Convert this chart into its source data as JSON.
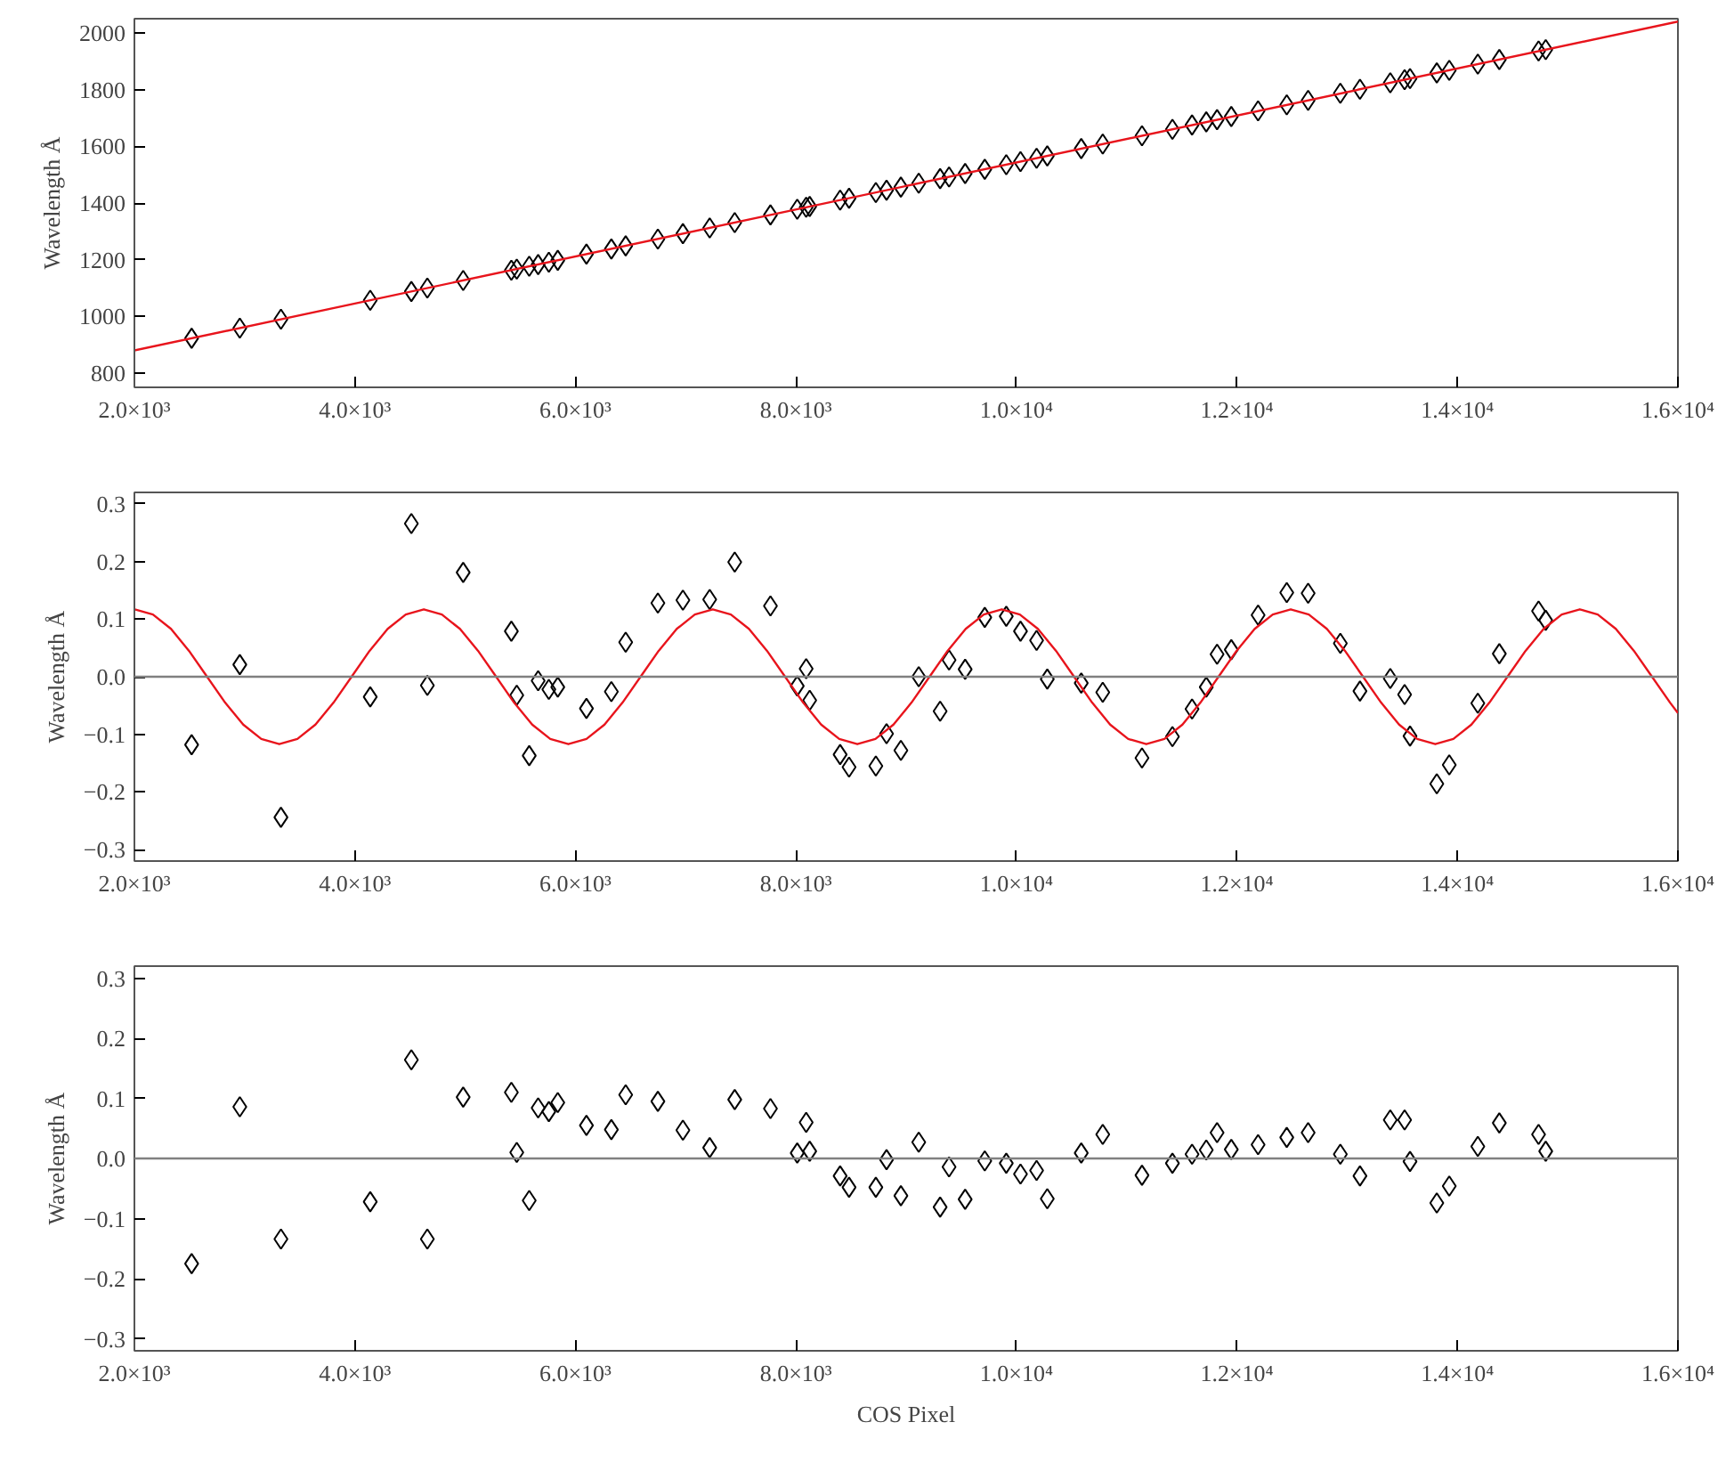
{
  "chart_data": [
    {
      "type": "scatter",
      "ylabel": "Wavelength Å",
      "marker": "diamond",
      "grid": false,
      "xlim": [
        2000,
        16000
      ],
      "ylim": [
        750,
        2050
      ],
      "xticks": [
        {
          "value": 2000,
          "label": "2.0×10³"
        },
        {
          "value": 4000,
          "label": "4.0×10³"
        },
        {
          "value": 6000,
          "label": "6.0×10³"
        },
        {
          "value": 8000,
          "label": "8.0×10³"
        },
        {
          "value": 10000,
          "label": "1.0×10⁴"
        },
        {
          "value": 12000,
          "label": "1.2×10⁴"
        },
        {
          "value": 14000,
          "label": "1.4×10⁴"
        },
        {
          "value": 16000,
          "label": "1.6×10⁴"
        }
      ],
      "yticks": [
        800,
        1000,
        1200,
        1400,
        1600,
        1800,
        2000
      ],
      "series": [
        {
          "color": "#000000",
          "x": [
            2519,
            2956,
            3329,
            4139,
            4512,
            4657,
            4982,
            5419,
            5468,
            5581,
            5662,
            5759,
            5840,
            6100,
            6326,
            6456,
            6748,
            6975,
            7218,
            7445,
            7769,
            8012,
            8093,
            8125,
            8401,
            8482,
            8725,
            8822,
            8952,
            9114,
            9308,
            9389,
            9535,
            9713,
            9908,
            10037,
            10183,
            10280,
            10588,
            10783,
            11139,
            11415,
            11593,
            11722,
            11820,
            11949,
            12192,
            12452,
            12646,
            12938,
            13116,
            13391,
            13521,
            13570,
            13813,
            13926,
            14185,
            14380,
            14736,
            14801
          ],
          "values": [
            923,
            959,
            990,
            1057,
            1088,
            1100,
            1127,
            1163,
            1167,
            1177,
            1183,
            1191,
            1198,
            1220,
            1238,
            1249,
            1273,
            1292,
            1312,
            1331,
            1358,
            1378,
            1385,
            1388,
            1410,
            1417,
            1437,
            1445,
            1456,
            1470,
            1486,
            1492,
            1504,
            1519,
            1535,
            1546,
            1558,
            1566,
            1592,
            1608,
            1637,
            1660,
            1675,
            1686,
            1694,
            1705,
            1725,
            1746,
            1762,
            1787,
            1801,
            1824,
            1835,
            1839,
            1859,
            1868,
            1890,
            1906,
            1936,
            1941
          ]
        },
        {
          "type": "line",
          "color": "#e8141c",
          "marker": "none",
          "x": [
            2000,
            16000
          ],
          "values": [
            880,
            2040
          ]
        }
      ]
    },
    {
      "type": "scatter",
      "ylabel": "Wavelength Å",
      "marker": "diamond",
      "grid": false,
      "xlim": [
        2000,
        16000
      ],
      "ylim": [
        -0.32,
        0.32
      ],
      "xticks": [
        {
          "value": 2000,
          "label": "2.0×10³"
        },
        {
          "value": 4000,
          "label": "4.0×10³"
        },
        {
          "value": 6000,
          "label": "6.0×10³"
        },
        {
          "value": 8000,
          "label": "8.0×10³"
        },
        {
          "value": 10000,
          "label": "1.0×10⁴"
        },
        {
          "value": 12000,
          "label": "1.2×10⁴"
        },
        {
          "value": 14000,
          "label": "1.4×10⁴"
        },
        {
          "value": 16000,
          "label": "1.6×10⁴"
        }
      ],
      "yticks": [
        -0.3,
        -0.2,
        -0.1,
        {
          "value": 0,
          "label": "0.0"
        },
        0.1,
        0.2,
        0.3
      ],
      "ref_lines": [
        {
          "axis": "y",
          "value": 0,
          "color": "#808080"
        }
      ],
      "series": [
        {
          "color": "#000000",
          "x": [
            2519,
            2956,
            3329,
            4139,
            4512,
            4657,
            4982,
            5419,
            5468,
            5581,
            5662,
            5759,
            5840,
            6100,
            6326,
            6456,
            6748,
            6975,
            7218,
            7445,
            7769,
            8012,
            8093,
            8125,
            8401,
            8482,
            8725,
            8822,
            8952,
            9114,
            9308,
            9389,
            9535,
            9713,
            9908,
            10037,
            10183,
            10280,
            10588,
            10783,
            11139,
            11415,
            11593,
            11722,
            11820,
            11949,
            12192,
            12452,
            12646,
            12938,
            13116,
            13391,
            13521,
            13570,
            13813,
            13926,
            14185,
            14380,
            14736,
            14801
          ],
          "values": [
            -0.118,
            0.021,
            -0.244,
            -0.035,
            0.266,
            -0.015,
            0.181,
            0.079,
            -0.032,
            -0.137,
            -0.007,
            -0.022,
            -0.018,
            -0.055,
            -0.026,
            0.06,
            0.128,
            0.133,
            0.134,
            0.199,
            0.123,
            -0.016,
            0.014,
            -0.041,
            -0.135,
            -0.157,
            -0.155,
            -0.099,
            -0.128,
            0.0,
            -0.06,
            0.029,
            0.013,
            0.103,
            0.105,
            0.079,
            0.063,
            -0.004,
            -0.011,
            -0.027,
            -0.141,
            -0.104,
            -0.056,
            -0.018,
            0.039,
            0.047,
            0.107,
            0.146,
            0.145,
            0.058,
            -0.025,
            -0.003,
            -0.031,
            -0.103,
            -0.186,
            -0.153,
            -0.046,
            0.04,
            0.114,
            0.098
          ]
        },
        {
          "type": "line",
          "color": "#e8141c",
          "marker": "none",
          "x": [
            2004,
            2168,
            2332,
            2495,
            2659,
            2823,
            2987,
            3151,
            3314,
            3478,
            3642,
            3806,
            3970,
            4133,
            4297,
            4461,
            4625,
            4789,
            4953,
            5117,
            5281,
            5444,
            5608,
            5772,
            5936,
            6100,
            6264,
            6427,
            6591,
            6755,
            6919,
            7083,
            7246,
            7410,
            7574,
            7738,
            7902,
            8066,
            8229,
            8393,
            8557,
            8721,
            8885,
            9048,
            9212,
            9376,
            9540,
            9704,
            9867,
            10031,
            10195,
            10359,
            10523,
            10687,
            10850,
            11014,
            11178,
            11342,
            11506,
            11669,
            11833,
            11997,
            12161,
            12325,
            12488,
            12652,
            12816,
            12980,
            13144,
            13308,
            13471,
            13635,
            13799,
            13963,
            14127,
            14290,
            14454,
            14618,
            14782,
            14946,
            15110,
            15273,
            15437,
            15601,
            15765,
            15929,
            16000
          ],
          "values": [
            0.117,
            0.108,
            0.083,
            0.045,
            0,
            -0.045,
            -0.083,
            -0.108,
            -0.117,
            -0.108,
            -0.083,
            -0.045,
            0,
            0.045,
            0.083,
            0.108,
            0.117,
            0.108,
            0.083,
            0.045,
            0,
            -0.045,
            -0.083,
            -0.108,
            -0.117,
            -0.108,
            -0.083,
            -0.045,
            0,
            0.045,
            0.083,
            0.108,
            0.117,
            0.108,
            0.083,
            0.045,
            0,
            -0.045,
            -0.083,
            -0.108,
            -0.117,
            -0.108,
            -0.083,
            -0.045,
            0,
            0.045,
            0.083,
            0.108,
            0.117,
            0.108,
            0.083,
            0.045,
            0,
            -0.045,
            -0.083,
            -0.108,
            -0.117,
            -0.108,
            -0.083,
            -0.045,
            0,
            0.045,
            0.083,
            0.108,
            0.117,
            0.108,
            0.083,
            0.045,
            0,
            -0.045,
            -0.083,
            -0.108,
            -0.117,
            -0.108,
            -0.083,
            -0.045,
            0,
            0.045,
            0.083,
            0.108,
            0.117,
            0.108,
            0.083,
            0.045,
            0,
            -0.045,
            -0.063
          ]
        }
      ]
    },
    {
      "type": "scatter",
      "ylabel": "Wavelength Å",
      "xlabel": "COS Pixel",
      "marker": "diamond",
      "grid": false,
      "xlim": [
        2000,
        16000
      ],
      "ylim": [
        -0.32,
        0.32
      ],
      "xticks": [
        {
          "value": 2000,
          "label": "2.0×10³"
        },
        {
          "value": 4000,
          "label": "4.0×10³"
        },
        {
          "value": 6000,
          "label": "6.0×10³"
        },
        {
          "value": 8000,
          "label": "8.0×10³"
        },
        {
          "value": 10000,
          "label": "1.0×10⁴"
        },
        {
          "value": 12000,
          "label": "1.2×10⁴"
        },
        {
          "value": 14000,
          "label": "1.4×10⁴"
        },
        {
          "value": 16000,
          "label": "1.6×10⁴"
        }
      ],
      "yticks": [
        -0.3,
        -0.2,
        -0.1,
        {
          "value": 0,
          "label": "0.0"
        },
        0.1,
        0.2,
        0.3
      ],
      "ref_lines": [
        {
          "axis": "y",
          "value": 0,
          "color": "#808080"
        }
      ],
      "series": [
        {
          "color": "#000000",
          "x": [
            2519,
            2956,
            3329,
            4139,
            4512,
            4657,
            4982,
            5419,
            5468,
            5581,
            5662,
            5759,
            5840,
            6100,
            6326,
            6456,
            6748,
            6975,
            7218,
            7445,
            7769,
            8012,
            8093,
            8125,
            8401,
            8482,
            8725,
            8822,
            8952,
            9114,
            9308,
            9389,
            9535,
            9713,
            9908,
            10037,
            10183,
            10280,
            10588,
            10783,
            11139,
            11415,
            11593,
            11722,
            11820,
            11949,
            12192,
            12452,
            12646,
            12938,
            13116,
            13391,
            13521,
            13570,
            13813,
            13926,
            14185,
            14380,
            14736,
            14801
          ],
          "values": [
            -0.175,
            0.086,
            -0.134,
            -0.072,
            0.164,
            -0.134,
            0.102,
            0.11,
            0.01,
            -0.07,
            0.084,
            0.078,
            0.093,
            0.055,
            0.048,
            0.106,
            0.095,
            0.047,
            0.018,
            0.098,
            0.083,
            0.009,
            0.06,
            0.012,
            -0.029,
            -0.048,
            -0.048,
            -0.002,
            -0.062,
            0.027,
            -0.081,
            -0.014,
            -0.068,
            -0.004,
            -0.008,
            -0.026,
            -0.02,
            -0.067,
            0.009,
            0.04,
            -0.028,
            -0.008,
            0.007,
            0.014,
            0.043,
            0.015,
            0.023,
            0.035,
            0.043,
            0.007,
            -0.029,
            0.064,
            0.064,
            -0.005,
            -0.074,
            -0.046,
            0.02,
            0.059,
            0.04,
            0.012
          ]
        }
      ]
    }
  ]
}
